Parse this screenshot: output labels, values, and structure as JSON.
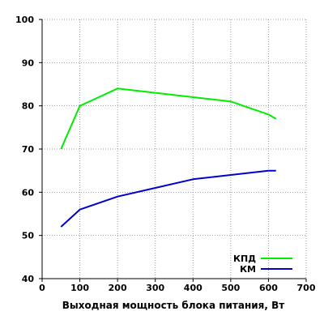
{
  "chart_data": {
    "type": "line",
    "xlabel": "Выходная мощность блока питания, Вт",
    "ylabel": "",
    "xlim": [
      0,
      700
    ],
    "ylim": [
      40,
      100
    ],
    "x_ticks": [
      0,
      100,
      200,
      300,
      400,
      500,
      600,
      700
    ],
    "y_ticks": [
      40,
      50,
      60,
      70,
      80,
      90,
      100
    ],
    "grid": true,
    "legend_position": "bottom-right",
    "series": [
      {
        "name": "КПД",
        "color": "#00ee00",
        "points": [
          [
            50,
            70
          ],
          [
            100,
            80
          ],
          [
            200,
            84
          ],
          [
            500,
            81
          ],
          [
            600,
            78
          ],
          [
            620,
            77
          ]
        ]
      },
      {
        "name": "КМ",
        "color": "#0000cc",
        "points": [
          [
            50,
            52
          ],
          [
            100,
            56
          ],
          [
            200,
            59
          ],
          [
            300,
            61
          ],
          [
            400,
            63
          ],
          [
            500,
            64
          ],
          [
            600,
            65
          ],
          [
            620,
            65
          ]
        ]
      }
    ]
  }
}
